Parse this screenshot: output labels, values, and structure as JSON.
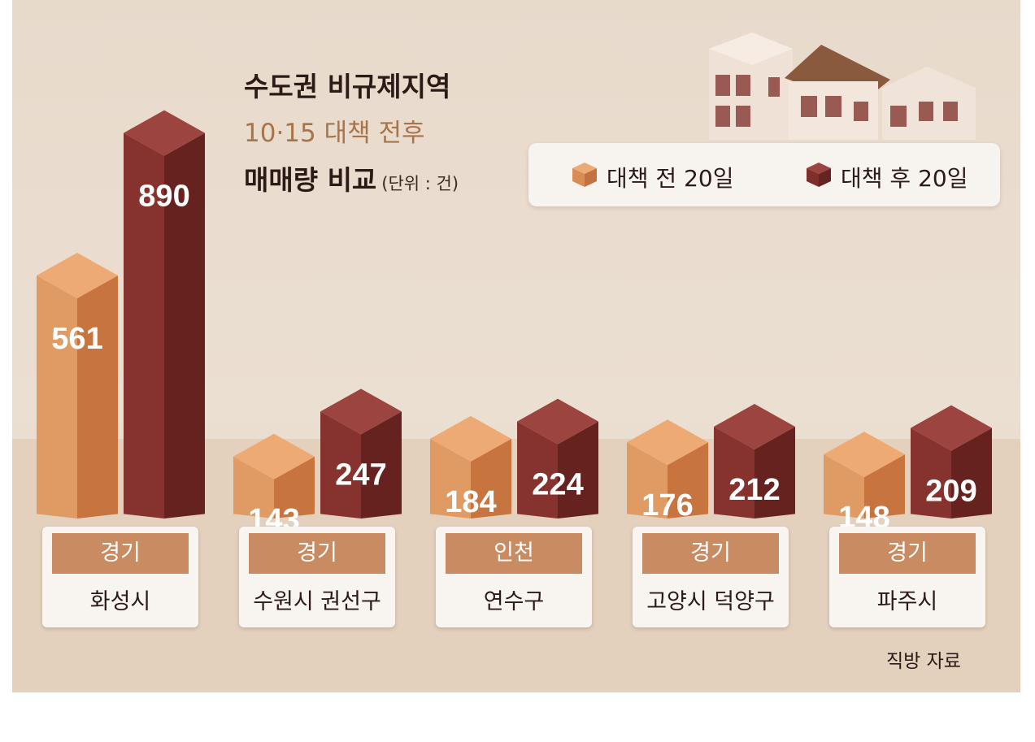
{
  "title": {
    "line1": "수도권 비규제지역",
    "line2": "10·15 대책 전후",
    "line3": "매매량 비교",
    "unit": "(단위 : 건)"
  },
  "legend": {
    "before": "대책 전 20일",
    "after": "대책 후 20일"
  },
  "colors": {
    "before": "#d98c56",
    "after": "#7e2f2c",
    "background": "#e6d6c6"
  },
  "source": "직방 자료",
  "chart_data": {
    "type": "bar",
    "categories": [
      "화성시",
      "수원시 권선구",
      "연수구",
      "고양시 덕양구",
      "파주시"
    ],
    "regions": [
      "경기",
      "경기",
      "인천",
      "경기",
      "경기"
    ],
    "series": [
      {
        "name": "대책 전 20일",
        "values": [
          561,
          143,
          184,
          176,
          148
        ]
      },
      {
        "name": "대책 후 20일",
        "values": [
          890,
          247,
          224,
          212,
          209
        ]
      }
    ],
    "ylabel": "",
    "xlabel": ""
  }
}
